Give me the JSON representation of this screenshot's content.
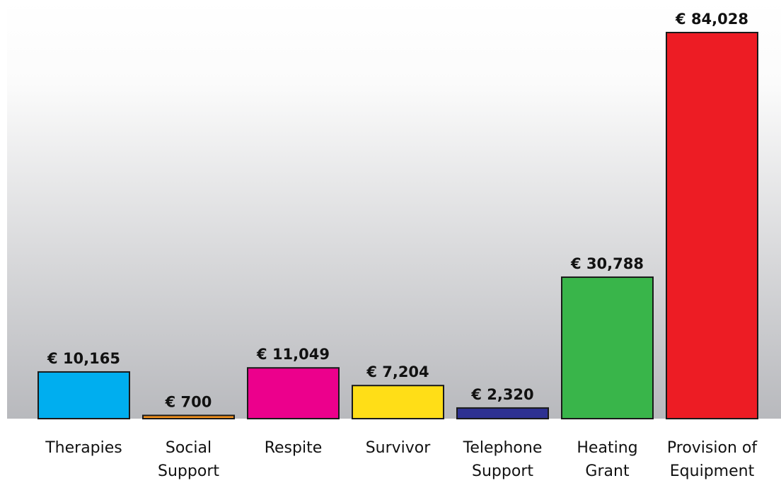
{
  "chart_data": {
    "type": "bar",
    "categories": [
      "Therapies",
      "Social Support",
      "Respite",
      "Survivor",
      "Telephone Support",
      "Heating Grant",
      "Provision of Equipment"
    ],
    "values": [
      10165,
      700,
      11049,
      7204,
      2320,
      30788,
      84028
    ],
    "value_labels": [
      "€ 10,165",
      "€ 700",
      "€ 11,049",
      "€ 7,204",
      "€ 2,320",
      "€ 30,788",
      "€ 84,028"
    ],
    "colors": [
      "#00aeef",
      "#f7941d",
      "#ec008c",
      "#ffde17",
      "#2e3192",
      "#39b54a",
      "#ed1c24"
    ]
  }
}
